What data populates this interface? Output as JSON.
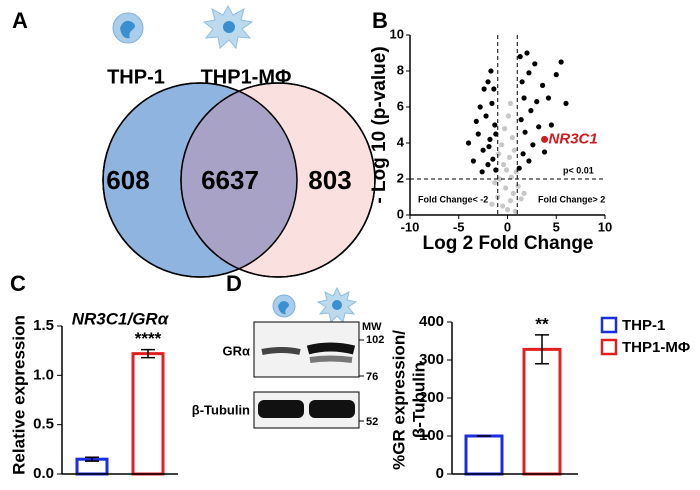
{
  "panels": [
    "A",
    "B",
    "C",
    "D"
  ],
  "chart_data": [
    {
      "type": "venn",
      "sets": [
        "THP-1",
        "THP1-MΦ"
      ],
      "colors": [
        "#8fb4e0",
        "#fbe0e0"
      ],
      "values": [
        608,
        6637,
        803
      ]
    },
    {
      "type": "scatter",
      "ylabel": "- Log 10 (p-value)",
      "xlabel": "Log 2 Fold Change",
      "xlim": [
        -10,
        10
      ],
      "xticks": [
        -10,
        -5,
        0,
        5,
        10
      ],
      "ylim": [
        0,
        10
      ],
      "yticks": [
        0,
        2,
        4,
        6,
        8,
        10
      ],
      "thresholds": {
        "x": [
          -1,
          1
        ],
        "y": 2
      },
      "annotations": [
        "p< 0.01",
        "Fold Change< -2",
        "Fold Change> 2"
      ],
      "series": [
        {
          "color": "#c8c8c8",
          "x": [
            -0.5,
            0.3,
            -0.2,
            0.6,
            -0.8,
            0.9,
            -0.4,
            0.2,
            0.7,
            -0.9,
            0.0,
            -1.0,
            1.1,
            0.4,
            -0.6,
            0.5,
            -1.3,
            1.4,
            -0.1,
            0.8,
            -0.3,
            0.1,
            -1.6,
            1.7,
            0.3
          ],
          "y": [
            0.5,
            0.8,
            1.5,
            1.2,
            2.0,
            2.4,
            2.8,
            3.2,
            3.6,
            3.4,
            0.3,
            1.0,
            1.6,
            2.1,
            3.9,
            4.3,
            1.8,
            0.9,
            2.5,
            0.2,
            4.8,
            5.5,
            0.6,
            1.2,
            6.2
          ]
        },
        {
          "color": "#000000",
          "x": [
            -1.2,
            -1.5,
            -2.0,
            -1.8,
            -2.5,
            -1.3,
            -2.2,
            -3.0,
            -1.6,
            -2.8,
            -1.4,
            -2.0,
            -3.5,
            -4.0,
            -1.9,
            -1.2,
            -2.6,
            -1.7,
            -3.2,
            -2.4,
            1.2,
            1.6,
            2.2,
            1.8,
            2.6,
            1.4,
            2.4,
            3.2,
            1.7,
            3.0,
            1.5,
            2.2,
            3.8,
            4.5,
            5.0,
            2.8,
            6.0,
            1.3,
            3.6,
            2.0,
            4.2,
            5.5
          ],
          "y": [
            2.5,
            3.1,
            2.8,
            4.2,
            3.6,
            5.0,
            5.5,
            4.5,
            6.2,
            6.0,
            7.0,
            7.4,
            3.0,
            4.0,
            3.8,
            4.5,
            2.4,
            8.0,
            5.2,
            7.0,
            2.6,
            3.4,
            3.0,
            4.6,
            3.9,
            5.3,
            5.8,
            4.9,
            6.5,
            6.3,
            7.4,
            7.9,
            3.5,
            5.0,
            7.8,
            8.4,
            6.2,
            8.8,
            7.2,
            9.0,
            6.5,
            8.5
          ]
        },
        {
          "name": "NR3C1",
          "color": "#d01c1c",
          "x": [
            3.8
          ],
          "y": [
            4.2
          ]
        }
      ]
    },
    {
      "type": "bar",
      "title": "NR3C1/GRα",
      "ylabel": "Relative expression",
      "ylim": [
        0,
        1.5
      ],
      "yticks": [
        {
          "value": 0,
          "label": "0.0"
        },
        {
          "value": 0.5,
          "label": "0.5"
        },
        {
          "value": 1,
          "label": "1.0"
        },
        {
          "value": 1.5,
          "label": "1.5"
        }
      ],
      "values": [
        0.15,
        1.22
      ],
      "errors": [
        0.02,
        0.04
      ],
      "colors": [
        "#1a2ee0",
        "#e02020"
      ],
      "annotation": "****"
    },
    {
      "type": "bar",
      "ylabel": [
        "%GR expression/",
        "β-Tubulin"
      ],
      "ylim": [
        0,
        400
      ],
      "yticks": [
        0,
        100,
        200,
        300,
        400
      ],
      "categories": [
        "THP-1",
        "THP1-MΦ"
      ],
      "values": [
        100,
        328
      ],
      "errors": [
        0,
        38
      ],
      "colors": [
        "#1a2ee0",
        "#e02020"
      ],
      "annotation": "**"
    }
  ],
  "blot": {
    "mw_label": "MW",
    "mw": [
      102,
      76,
      52
    ],
    "bands": [
      "GRα",
      "β-Tubulin"
    ]
  }
}
